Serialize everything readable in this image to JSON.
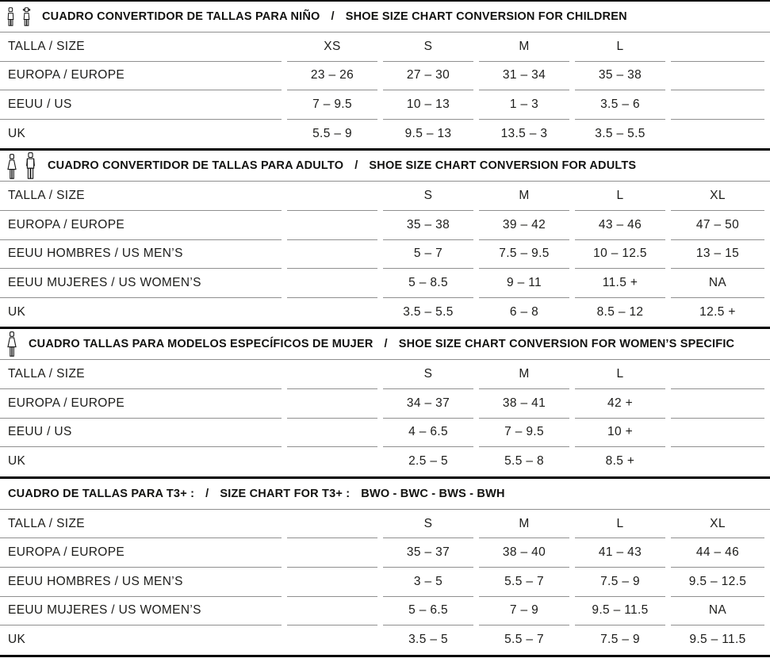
{
  "sections": [
    {
      "id": "children",
      "icons": [
        "boy-icon",
        "girl-icon"
      ],
      "title_es": "CUADRO CONVERTIDOR DE TALLAS PARA NIÑO",
      "title_sep": "/",
      "title_en": "SHOE SIZE CHART CONVERSION FOR CHILDREN",
      "rows": [
        {
          "label": "TALLA / SIZE",
          "values": [
            "XS",
            "S",
            "M",
            "L",
            ""
          ]
        },
        {
          "label": "EUROPA / EUROPE",
          "values": [
            "23 – 26",
            "27 – 30",
            "31 – 34",
            "35 – 38",
            ""
          ]
        },
        {
          "label": "EEUU / US",
          "values": [
            "7 – 9.5",
            "10 – 13",
            "1 – 3",
            "3.5 – 6",
            ""
          ]
        },
        {
          "label": "UK",
          "values": [
            "5.5 – 9",
            "9.5 – 13",
            "13.5 – 3",
            "3.5 – 5.5",
            ""
          ]
        }
      ]
    },
    {
      "id": "adults",
      "icons": [
        "woman-icon",
        "man-icon"
      ],
      "title_es": "CUADRO CONVERTIDOR DE TALLAS PARA ADULTO",
      "title_sep": "/",
      "title_en": "SHOE SIZE CHART CONVERSION FOR ADULTS",
      "rows": [
        {
          "label": "TALLA / SIZE",
          "values": [
            "",
            "S",
            "M",
            "L",
            "XL"
          ]
        },
        {
          "label": "EUROPA / EUROPE",
          "values": [
            "",
            "35 – 38",
            "39 – 42",
            "43 – 46",
            "47 – 50"
          ]
        },
        {
          "label": "EEUU HOMBRES / US MEN’S",
          "values": [
            "",
            "5 – 7",
            "7.5 – 9.5",
            "10 – 12.5",
            "13 – 15"
          ]
        },
        {
          "label": "EEUU MUJERES / US WOMEN’S",
          "values": [
            "",
            "5 – 8.5",
            "9 – 11",
            "11.5 +",
            "NA"
          ]
        },
        {
          "label": "UK",
          "values": [
            "",
            "3.5 – 5.5",
            "6 – 8",
            "8.5 – 12",
            "12.5 +"
          ]
        }
      ]
    },
    {
      "id": "womens-specific",
      "icons": [
        "woman-icon"
      ],
      "title_es": "CUADRO TALLAS PARA MODELOS ESPECÍFICOS DE MUJER",
      "title_sep": "/",
      "title_en": "SHOE SIZE CHART CONVERSION FOR WOMEN’S SPECIFIC",
      "rows": [
        {
          "label": "TALLA / SIZE",
          "values": [
            "",
            "S",
            "M",
            "L",
            ""
          ]
        },
        {
          "label": "EUROPA / EUROPE",
          "values": [
            "",
            "34 – 37",
            "38 – 41",
            "42 +",
            ""
          ]
        },
        {
          "label": "EEUU / US",
          "values": [
            "",
            "4 – 6.5",
            "7 – 9.5",
            "10 +",
            ""
          ]
        },
        {
          "label": "UK",
          "values": [
            "",
            "2.5 – 5",
            "5.5 – 8",
            "8.5 +",
            ""
          ]
        }
      ]
    },
    {
      "id": "t3plus",
      "icons": [],
      "title_es": "CUADRO DE TALLAS PARA T3+ :",
      "title_sep": "/",
      "title_en": "SIZE CHART FOR T3+ :",
      "title_suffix": "BWO - BWC - BWS - BWH",
      "rows": [
        {
          "label": "TALLA / SIZE",
          "values": [
            "",
            "S",
            "M",
            "L",
            "XL"
          ]
        },
        {
          "label": "EUROPA / EUROPE",
          "values": [
            "",
            "35 – 37",
            "38 – 40",
            "41 – 43",
            "44 – 46"
          ]
        },
        {
          "label": "EEUU HOMBRES / US MEN’S",
          "values": [
            "",
            "3 – 5",
            "5.5 – 7",
            "7.5 – 9",
            "9.5 – 12.5"
          ]
        },
        {
          "label": "EEUU MUJERES / US WOMEN’S",
          "values": [
            "",
            "5 – 6.5",
            "7 – 9",
            "9.5 – 11.5",
            "NA"
          ]
        },
        {
          "label": "UK",
          "values": [
            "",
            "3.5 – 5",
            "5.5 – 7",
            "7.5 – 9",
            "9.5 – 11.5"
          ]
        }
      ]
    }
  ],
  "colors": {
    "text": "#1c1c1a",
    "rule_gray": "#8f8f8f",
    "divider_black": "#000000",
    "background": "#ffffff"
  }
}
